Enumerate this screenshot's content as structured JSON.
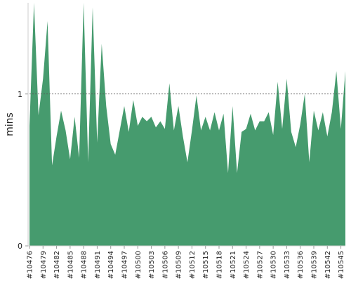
{
  "chart_data": {
    "type": "area",
    "ylabel": "mins",
    "ylim": [
      0,
      1.6
    ],
    "y_ticks": [
      {
        "value": 0,
        "label": "0"
      },
      {
        "value": 1,
        "label": "1"
      }
    ],
    "reference_line": {
      "value": 1,
      "style": "dashed"
    },
    "grid": false,
    "legend": "none",
    "x": [
      "#10476",
      "#10477",
      "#10478",
      "#10479",
      "#10480",
      "#10481",
      "#10482",
      "#10483",
      "#10484",
      "#10485",
      "#10486",
      "#10487",
      "#10488",
      "#10489",
      "#10490",
      "#10491",
      "#10492",
      "#10493",
      "#10494",
      "#10495",
      "#10496",
      "#10497",
      "#10498",
      "#10499",
      "#10500",
      "#10501",
      "#10502",
      "#10503",
      "#10504",
      "#10505",
      "#10506",
      "#10507",
      "#10508",
      "#10509",
      "#10510",
      "#10511",
      "#10512",
      "#10513",
      "#10514",
      "#10515",
      "#10516",
      "#10517",
      "#10518",
      "#10519",
      "#10520",
      "#10521",
      "#10522",
      "#10523",
      "#10524",
      "#10525",
      "#10526",
      "#10527",
      "#10528",
      "#10529",
      "#10530",
      "#10531",
      "#10532",
      "#10533",
      "#10534",
      "#10535",
      "#10536",
      "#10537",
      "#10538",
      "#10539",
      "#10540",
      "#10541",
      "#10542",
      "#10543",
      "#10544",
      "#10545",
      "#10546"
    ],
    "x_tick_labels": [
      "#10476",
      "#10479",
      "#10482",
      "#10485",
      "#10488",
      "#10491",
      "#10494",
      "#10497",
      "#10500",
      "#10503",
      "#10506",
      "#10509",
      "#10512",
      "#10515",
      "#10518",
      "#10521",
      "#10524",
      "#10527",
      "#10530",
      "#10533",
      "#10536",
      "#10539",
      "#10542",
      "#10545"
    ],
    "series": [
      {
        "color": "#469b6e",
        "values": [
          0.79,
          1.65,
          0.86,
          1.1,
          1.48,
          0.53,
          0.72,
          0.89,
          0.76,
          0.57,
          0.85,
          0.58,
          1.65,
          0.55,
          1.57,
          0.68,
          1.33,
          0.92,
          0.67,
          0.6,
          0.76,
          0.92,
          0.75,
          0.96,
          0.79,
          0.85,
          0.82,
          0.85,
          0.78,
          0.82,
          0.77,
          1.07,
          0.76,
          0.92,
          0.72,
          0.55,
          0.76,
          0.99,
          0.76,
          0.85,
          0.76,
          0.88,
          0.76,
          0.87,
          0.48,
          0.92,
          0.48,
          0.75,
          0.77,
          0.87,
          0.76,
          0.82,
          0.82,
          0.88,
          0.73,
          1.08,
          0.77,
          1.1,
          0.75,
          0.65,
          0.8,
          1.0,
          0.55,
          0.89,
          0.76,
          0.88,
          0.72,
          0.88,
          1.15,
          0.77,
          1.15
        ]
      }
    ]
  }
}
